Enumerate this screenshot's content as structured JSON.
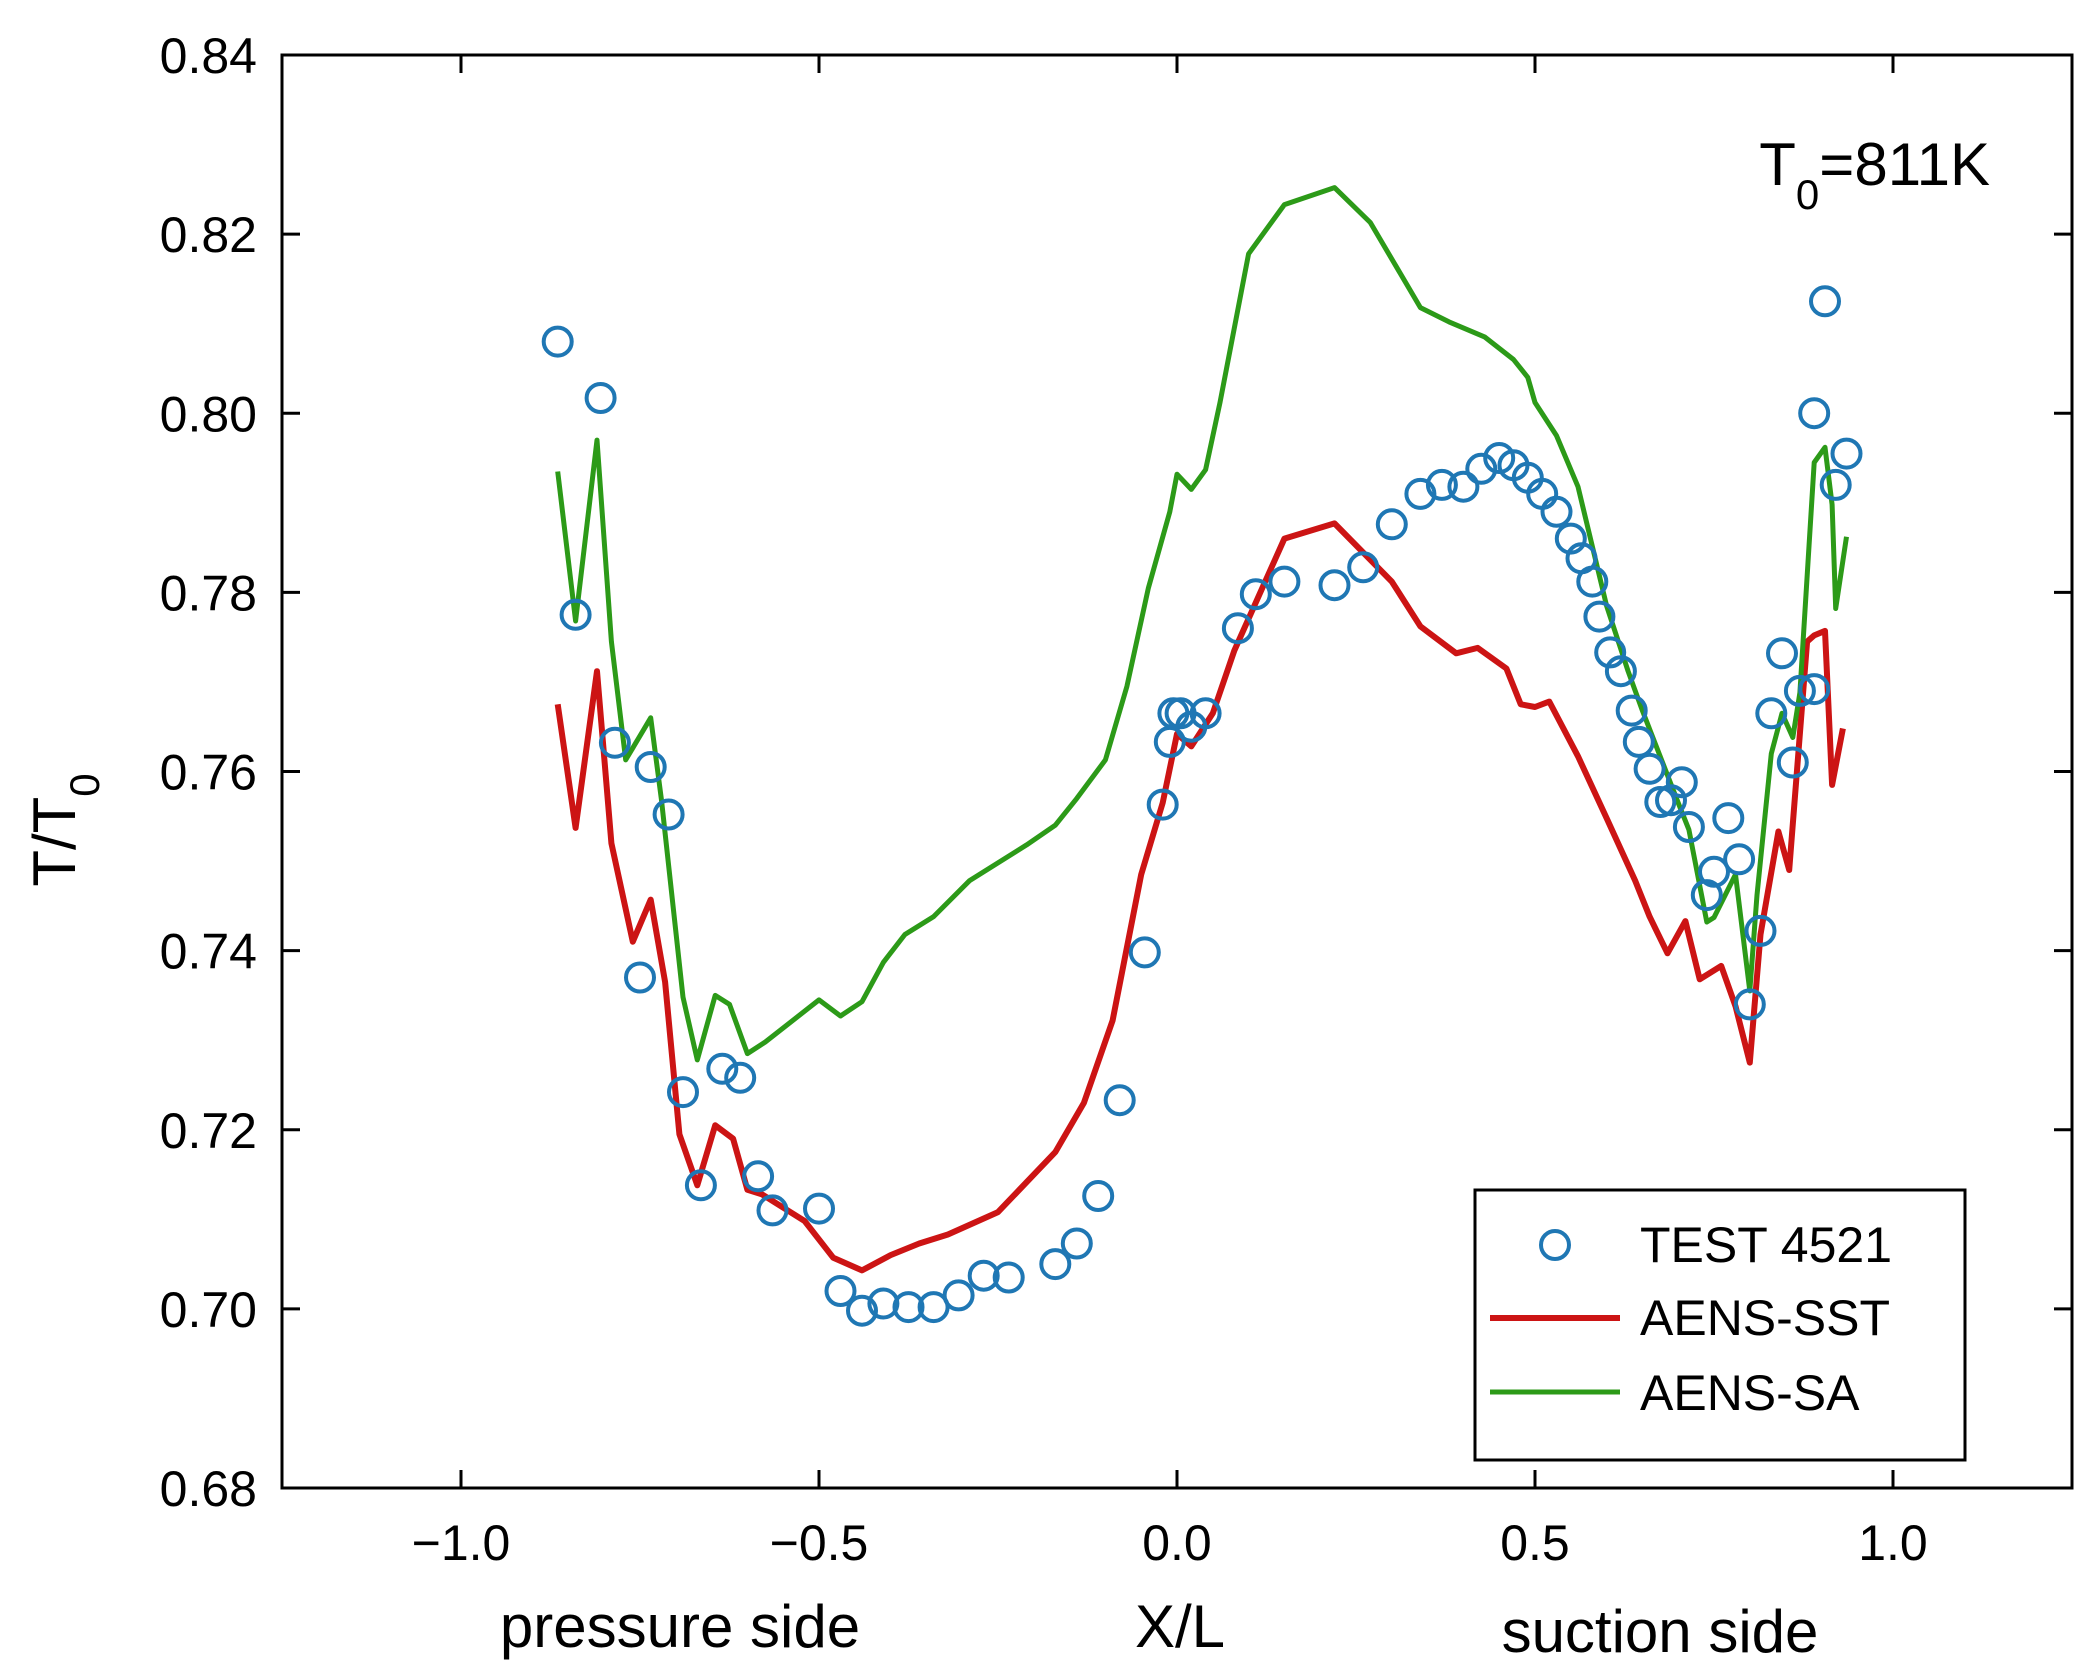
{
  "chart_data": {
    "type": "line",
    "xlabel": "X/L",
    "xlabel_left": "pressure side",
    "xlabel_right": "suction side",
    "ylabel": "T/T0",
    "xlim": [
      -1.25,
      1.25
    ],
    "ylim": [
      0.68,
      0.84
    ],
    "xticks": [
      -1.0,
      -0.5,
      0.0,
      0.5,
      1.0
    ],
    "xtick_labels": [
      "−1.0",
      "−0.5",
      "0.0",
      "0.5",
      "1.0"
    ],
    "yticks": [
      0.68,
      0.7,
      0.72,
      0.74,
      0.76,
      0.78,
      0.8,
      0.82,
      0.84
    ],
    "ytick_labels": [
      "0.68",
      "0.70",
      "0.72",
      "0.74",
      "0.76",
      "0.78",
      "0.80",
      "0.82",
      "0.84"
    ],
    "annotation": "T0=811K",
    "legend_position": "bottom-right",
    "grid": false,
    "series": [
      {
        "name": "TEST 4521",
        "kind": "scatter",
        "color": "#1f77b4",
        "points": [
          [
            -0.865,
            0.808
          ],
          [
            -0.84,
            0.7775
          ],
          [
            -0.805,
            0.8017
          ],
          [
            -0.785,
            0.7632
          ],
          [
            -0.75,
            0.737
          ],
          [
            -0.735,
            0.7605
          ],
          [
            -0.71,
            0.7552
          ],
          [
            -0.69,
            0.7242
          ],
          [
            -0.665,
            0.7138
          ],
          [
            -0.635,
            0.7268
          ],
          [
            -0.61,
            0.7258
          ],
          [
            -0.585,
            0.7148
          ],
          [
            -0.565,
            0.711
          ],
          [
            -0.5,
            0.7112
          ],
          [
            -0.47,
            0.702
          ],
          [
            -0.44,
            0.6998
          ],
          [
            -0.41,
            0.7006
          ],
          [
            -0.375,
            0.7002
          ],
          [
            -0.34,
            0.7002
          ],
          [
            -0.305,
            0.7015
          ],
          [
            -0.27,
            0.7037
          ],
          [
            -0.235,
            0.7035
          ],
          [
            -0.17,
            0.705
          ],
          [
            -0.14,
            0.7073
          ],
          [
            -0.11,
            0.7126
          ],
          [
            -0.08,
            0.7233
          ],
          [
            -0.045,
            0.7398
          ],
          [
            -0.02,
            0.7563
          ],
          [
            -0.01,
            0.7633
          ],
          [
            -0.005,
            0.7665
          ],
          [
            0.005,
            0.7665
          ],
          [
            0.02,
            0.765
          ],
          [
            0.04,
            0.7665
          ],
          [
            0.085,
            0.776
          ],
          [
            0.11,
            0.7798
          ],
          [
            0.15,
            0.7812
          ],
          [
            0.22,
            0.7808
          ],
          [
            0.26,
            0.7828
          ],
          [
            0.3,
            0.7876
          ],
          [
            0.34,
            0.791
          ],
          [
            0.37,
            0.792
          ],
          [
            0.4,
            0.7918
          ],
          [
            0.425,
            0.7938
          ],
          [
            0.45,
            0.795
          ],
          [
            0.47,
            0.7942
          ],
          [
            0.49,
            0.7928
          ],
          [
            0.51,
            0.791
          ],
          [
            0.53,
            0.789
          ],
          [
            0.55,
            0.786
          ],
          [
            0.565,
            0.7838
          ],
          [
            0.58,
            0.7812
          ],
          [
            0.59,
            0.7773
          ],
          [
            0.605,
            0.7733
          ],
          [
            0.62,
            0.7712
          ],
          [
            0.635,
            0.7668
          ],
          [
            0.645,
            0.7633
          ],
          [
            0.66,
            0.7603
          ],
          [
            0.675,
            0.7566
          ],
          [
            0.69,
            0.7568
          ],
          [
            0.705,
            0.7588
          ],
          [
            0.715,
            0.7538
          ],
          [
            0.74,
            0.7462
          ],
          [
            0.75,
            0.7488
          ],
          [
            0.77,
            0.7548
          ],
          [
            0.785,
            0.7502
          ],
          [
            0.8,
            0.734
          ],
          [
            0.815,
            0.7422
          ],
          [
            0.83,
            0.7665
          ],
          [
            0.845,
            0.7732
          ],
          [
            0.86,
            0.761
          ],
          [
            0.87,
            0.769
          ],
          [
            0.89,
            0.7692
          ],
          [
            0.89,
            0.8
          ],
          [
            0.905,
            0.8125
          ],
          [
            0.92,
            0.792
          ],
          [
            0.935,
            0.7955
          ]
        ]
      },
      {
        "name": "AENS-SST",
        "kind": "line",
        "color": "#cc1414",
        "points": [
          [
            -0.865,
            0.7675
          ],
          [
            -0.84,
            0.7537
          ],
          [
            -0.81,
            0.7712
          ],
          [
            -0.79,
            0.752
          ],
          [
            -0.76,
            0.741
          ],
          [
            -0.735,
            0.7457
          ],
          [
            -0.715,
            0.7365
          ],
          [
            -0.695,
            0.7195
          ],
          [
            -0.67,
            0.7138
          ],
          [
            -0.645,
            0.7205
          ],
          [
            -0.62,
            0.719
          ],
          [
            -0.6,
            0.7133
          ],
          [
            -0.58,
            0.7128
          ],
          [
            -0.52,
            0.7098
          ],
          [
            -0.48,
            0.7057
          ],
          [
            -0.44,
            0.7043
          ],
          [
            -0.4,
            0.706
          ],
          [
            -0.36,
            0.7073
          ],
          [
            -0.32,
            0.7083
          ],
          [
            -0.25,
            0.7108
          ],
          [
            -0.17,
            0.7175
          ],
          [
            -0.13,
            0.723
          ],
          [
            -0.09,
            0.7322
          ],
          [
            -0.05,
            0.7485
          ],
          [
            -0.02,
            0.7565
          ],
          [
            0.0,
            0.7642
          ],
          [
            0.02,
            0.7628
          ],
          [
            0.05,
            0.7665
          ],
          [
            0.08,
            0.7735
          ],
          [
            0.15,
            0.786
          ],
          [
            0.22,
            0.7877
          ],
          [
            0.3,
            0.7812
          ],
          [
            0.34,
            0.7762
          ],
          [
            0.39,
            0.7732
          ],
          [
            0.42,
            0.7738
          ],
          [
            0.46,
            0.7715
          ],
          [
            0.48,
            0.7675
          ],
          [
            0.5,
            0.7672
          ],
          [
            0.52,
            0.7678
          ],
          [
            0.56,
            0.7617
          ],
          [
            0.6,
            0.7548
          ],
          [
            0.64,
            0.7478
          ],
          [
            0.66,
            0.7438
          ],
          [
            0.685,
            0.7397
          ],
          [
            0.71,
            0.7433
          ],
          [
            0.73,
            0.7368
          ],
          [
            0.76,
            0.7383
          ],
          [
            0.78,
            0.7338
          ],
          [
            0.8,
            0.7275
          ],
          [
            0.815,
            0.7418
          ],
          [
            0.84,
            0.7533
          ],
          [
            0.855,
            0.749
          ],
          [
            0.88,
            0.7745
          ],
          [
            0.89,
            0.7752
          ],
          [
            0.905,
            0.7757
          ],
          [
            0.915,
            0.7585
          ],
          [
            0.93,
            0.7648
          ]
        ]
      },
      {
        "name": "AENS-SA",
        "kind": "line",
        "color": "#2c9a18",
        "points": [
          [
            -0.865,
            0.7935
          ],
          [
            -0.84,
            0.7768
          ],
          [
            -0.81,
            0.797
          ],
          [
            -0.79,
            0.7745
          ],
          [
            -0.77,
            0.7613
          ],
          [
            -0.735,
            0.766
          ],
          [
            -0.72,
            0.7568
          ],
          [
            -0.69,
            0.7348
          ],
          [
            -0.67,
            0.7278
          ],
          [
            -0.645,
            0.735
          ],
          [
            -0.625,
            0.734
          ],
          [
            -0.6,
            0.7285
          ],
          [
            -0.575,
            0.7298
          ],
          [
            -0.5,
            0.7345
          ],
          [
            -0.47,
            0.7327
          ],
          [
            -0.44,
            0.7343
          ],
          [
            -0.41,
            0.7387
          ],
          [
            -0.38,
            0.7418
          ],
          [
            -0.34,
            0.7438
          ],
          [
            -0.29,
            0.7478
          ],
          [
            -0.21,
            0.7518
          ],
          [
            -0.17,
            0.754
          ],
          [
            -0.14,
            0.757
          ],
          [
            -0.1,
            0.7613
          ],
          [
            -0.07,
            0.7695
          ],
          [
            -0.04,
            0.7805
          ],
          [
            -0.01,
            0.789
          ],
          [
            0.0,
            0.7932
          ],
          [
            0.02,
            0.7915
          ],
          [
            0.04,
            0.7937
          ],
          [
            0.06,
            0.8012
          ],
          [
            0.1,
            0.8178
          ],
          [
            0.15,
            0.8233
          ],
          [
            0.22,
            0.8252
          ],
          [
            0.27,
            0.8213
          ],
          [
            0.34,
            0.8118
          ],
          [
            0.38,
            0.8102
          ],
          [
            0.43,
            0.8085
          ],
          [
            0.47,
            0.806
          ],
          [
            0.49,
            0.804
          ],
          [
            0.5,
            0.8012
          ],
          [
            0.53,
            0.7975
          ],
          [
            0.56,
            0.7918
          ],
          [
            0.6,
            0.7785
          ],
          [
            0.63,
            0.7712
          ],
          [
            0.65,
            0.7668
          ],
          [
            0.7,
            0.7565
          ],
          [
            0.715,
            0.7535
          ],
          [
            0.74,
            0.7432
          ],
          [
            0.75,
            0.7437
          ],
          [
            0.78,
            0.7485
          ],
          [
            0.8,
            0.7355
          ],
          [
            0.81,
            0.7462
          ],
          [
            0.83,
            0.762
          ],
          [
            0.845,
            0.7665
          ],
          [
            0.86,
            0.7638
          ],
          [
            0.87,
            0.7688
          ],
          [
            0.89,
            0.7945
          ],
          [
            0.905,
            0.7962
          ],
          [
            0.915,
            0.7898
          ],
          [
            0.92,
            0.7782
          ],
          [
            0.935,
            0.7862
          ]
        ]
      }
    ]
  }
}
